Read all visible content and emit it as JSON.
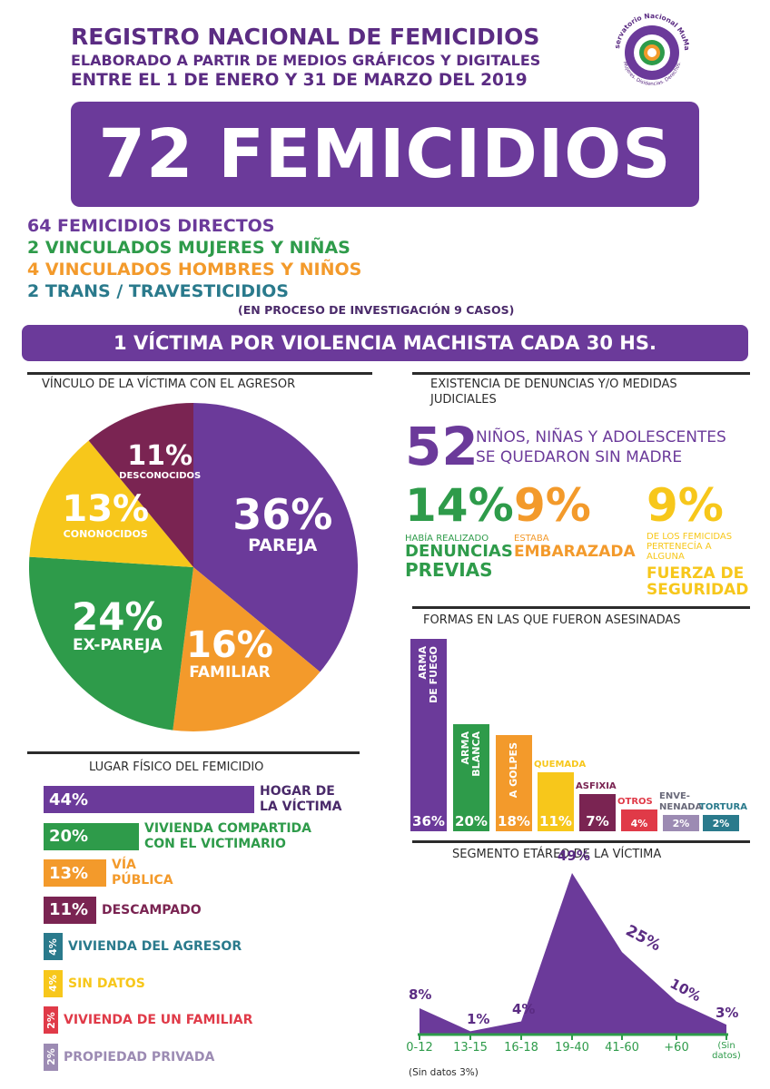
{
  "header": {
    "title": "REGISTRO NACIONAL DE FEMICIDIOS",
    "subtitle": "ELABORADO A PARTIR DE MEDIOS GRÁFICOS Y DIGITALES",
    "period": "ENTRE EL 1 DE ENERO Y 31 DE MARZO DEL 2019",
    "logo_top": "Observatorio Nacional MuMaLá",
    "logo_bottom": "Mujeres. Disidencias. Derechos."
  },
  "total": "72 FEMICIDIOS",
  "counts": [
    {
      "text": "64 FEMICIDIOS DIRECTOS",
      "color": "#6b3a9a"
    },
    {
      "text": "2 VINCULADOS MUJERES Y NIÑAS",
      "color": "#2e9b4a"
    },
    {
      "text": "4 VINCULADOS HOMBRES Y NIÑOS",
      "color": "#f39a2b"
    },
    {
      "text": "2 TRANS / TRAVESTICIDIOS",
      "color": "#2a7a8c"
    }
  ],
  "investigation_note": "(EN PROCESO DE INVESTIGACIÓN 9 CASOS)",
  "banner": "1 VÍCTIMA POR VIOLENCIA MACHISTA CADA 30 HS.",
  "colors": {
    "purple": "#6b3a9a",
    "green": "#2e9b4a",
    "orange": "#f39a2b",
    "yellow": "#f7c71b",
    "maroon": "#7a2452",
    "teal": "#2a7a8c",
    "red": "#e03a48",
    "lilac": "#9c8bb3"
  },
  "denuncias": {
    "title": "EXISTENCIA DE DENUNCIAS Y/O MEDIDAS JUDICIALES",
    "title_line1": "EXISTENCIA DE DENUNCIAS Y/O MEDIDAS",
    "title_line2": "JUDICIALES",
    "children_number": "52",
    "children_line1": "NIÑOS, NIÑAS Y ADOLESCENTES",
    "children_line2": "SE QUEDARON SIN MADRE",
    "stat1": {
      "pct": "14%",
      "small": "HABÍA REALIZADO",
      "strong1": "DENUNCIAS",
      "strong2": "PREVIAS"
    },
    "stat2": {
      "pct": "9%",
      "small": "ESTABA",
      "strong1": "EMBARAZADA"
    },
    "stat3": {
      "pct": "9%",
      "small1": "DE LOS FEMICIDAS",
      "small2": "PERTENECÍA A",
      "small3": "ALGUNA",
      "strong1": "FUERZA DE",
      "strong2": "SEGURIDAD"
    }
  },
  "chart_data": [
    {
      "type": "pie",
      "title": "VÍNCULO DE LA VÍCTIMA CON EL AGRESOR",
      "slices": [
        {
          "label": "PAREJA",
          "value": 36,
          "pct_text": "36%",
          "color": "#6b3a9a"
        },
        {
          "label": "FAMILIAR",
          "value": 16,
          "pct_text": "16%",
          "color": "#f39a2b"
        },
        {
          "label": "EX-PAREJA",
          "value": 24,
          "pct_text": "24%",
          "color": "#2e9b4a"
        },
        {
          "label": "CONONOCIDOS",
          "value": 13,
          "pct_text": "13%",
          "color": "#f7c71b"
        },
        {
          "label": "DESCONOCIDOS",
          "value": 11,
          "pct_text": "11%",
          "color": "#7a2452"
        }
      ]
    },
    {
      "type": "bar",
      "orientation": "horizontal",
      "title": "LUGAR FÍSICO DEL FEMICIDIO",
      "categories": [
        "HOGAR DE LA VÍCTIMA",
        "VIVIENDA COMPARTIDA CON EL VICTIMARIO",
        "VÍA PÚBLICA",
        "DESCAMPADO",
        "VIVIENDA DEL AGRESOR",
        "SIN DATOS",
        "VIVIENDA DE UN FAMILIAR",
        "PROPIEDAD PRIVADA"
      ],
      "label_lines": [
        [
          "HOGAR DE",
          "LA VÍCTIMA"
        ],
        [
          "VIVIENDA COMPARTIDA",
          "CON EL VICTIMARIO"
        ],
        [
          "VÍA",
          "PÚBLICA"
        ],
        [
          "DESCAMPADO"
        ],
        [
          "VIVIENDA DEL AGRESOR"
        ],
        [
          "SIN DATOS"
        ],
        [
          "VIVIENDA DE UN FAMILIAR"
        ],
        [
          "PROPIEDAD PRIVADA"
        ]
      ],
      "values": [
        44,
        20,
        13,
        11,
        4,
        4,
        2,
        2
      ],
      "value_labels": [
        "44%",
        "20%",
        "13%",
        "11%",
        "4%",
        "4%",
        "2%",
        "2%"
      ],
      "colors": [
        "#6b3a9a",
        "#2e9b4a",
        "#f39a2b",
        "#7a2452",
        "#2a7a8c",
        "#f7c71b",
        "#e03a48",
        "#9c8bb3"
      ]
    },
    {
      "type": "bar",
      "title": "FORMAS EN LAS QUE FUERON ASESINADAS",
      "categories": [
        "ARMA DE FUEGO",
        "ARMA BLANCA",
        "A GOLPES",
        "QUEMADA",
        "ASFIXIA",
        "OTROS",
        "ENVENENADA",
        "TORTURA"
      ],
      "values": [
        36,
        20,
        18,
        11,
        7,
        4,
        2,
        2
      ],
      "value_labels": [
        "36%",
        "20%",
        "18%",
        "11%",
        "7%",
        "4%",
        "2%",
        "2%"
      ],
      "inside_lines": [
        [
          "ARMA",
          "DE FUEGO"
        ],
        [
          "ARMA",
          "BLANCA"
        ],
        [
          "A GOLPES"
        ],
        [],
        [],
        [],
        [],
        []
      ],
      "top_labels": [
        "",
        "",
        "",
        "QUEMADA",
        "ASFIXIA",
        "OTROS",
        "ENVE-\nNENADA",
        "TORTURA"
      ],
      "colors": [
        "#6b3a9a",
        "#2e9b4a",
        "#f39a2b",
        "#f7c71b",
        "#7a2452",
        "#e03a48",
        "#9c8bb3",
        "#2a7a8c"
      ]
    },
    {
      "type": "area",
      "title": "SEGMENTO ETÁREO DE LA VÍCTIMA",
      "categories": [
        "0-12",
        "13-15",
        "16-18",
        "19-40",
        "41-60",
        "+60",
        "(Sin datos)"
      ],
      "values": [
        8,
        1,
        4,
        49,
        25,
        10,
        3
      ],
      "value_labels": [
        "8%",
        "1%",
        "4%",
        "49%",
        "25%",
        "10%",
        "3%"
      ],
      "note": "(Sin datos 3%)",
      "color": "#6b3a9a",
      "axis_color": "#2e9b4a"
    }
  ]
}
